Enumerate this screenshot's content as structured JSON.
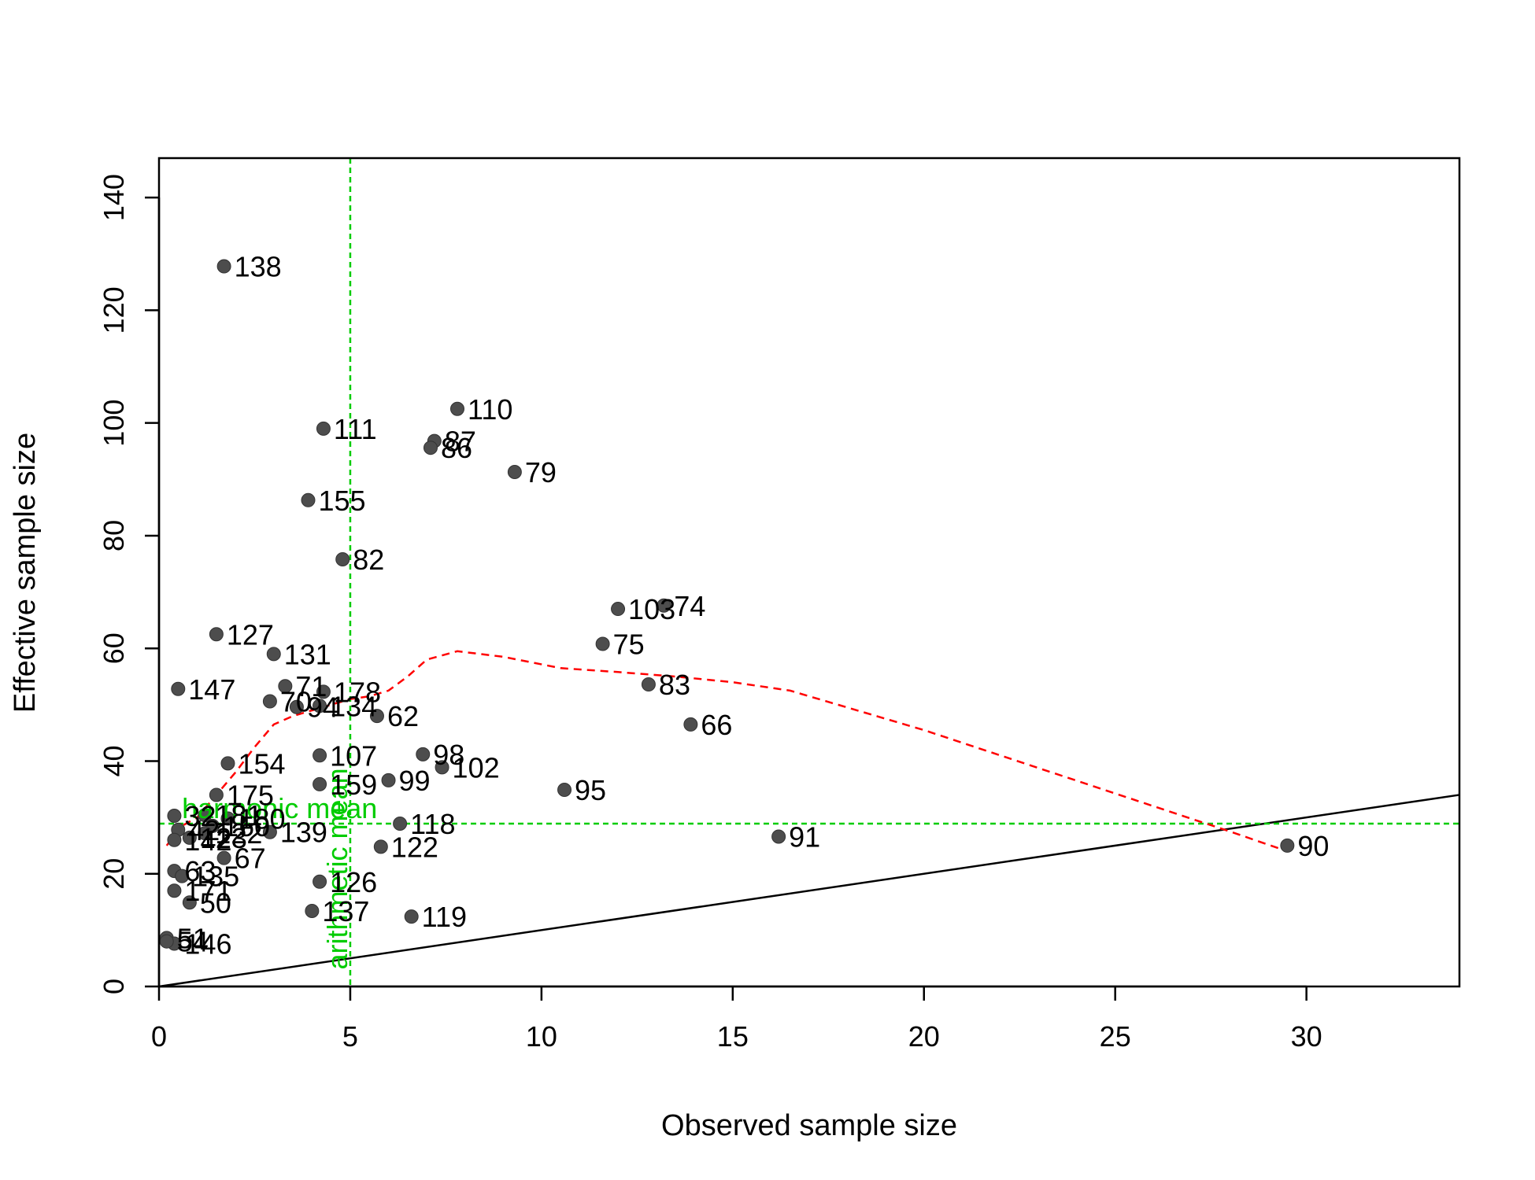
{
  "chart_data": {
    "type": "scatter",
    "title": "",
    "xlabel": "Observed sample size",
    "ylabel": "Effective sample size",
    "xlim": [
      0,
      34
    ],
    "ylim": [
      0,
      147
    ],
    "x_ticks": [
      0,
      5,
      10,
      15,
      20,
      25,
      30
    ],
    "y_ticks": [
      0,
      20,
      40,
      60,
      80,
      100,
      120,
      140
    ],
    "grid": false,
    "legend": "none",
    "colors": {
      "points": "#4d4d4d",
      "smooth": "#ff0000",
      "reference": "#00cc00",
      "identity": "#000000"
    },
    "points": [
      {
        "label": "138",
        "x": 1.7,
        "y": 127.8
      },
      {
        "label": "110",
        "x": 7.8,
        "y": 102.5
      },
      {
        "label": "111",
        "x": 4.3,
        "y": 99.0
      },
      {
        "label": "87",
        "x": 7.2,
        "y": 96.8
      },
      {
        "label": "86",
        "x": 7.1,
        "y": 95.6
      },
      {
        "label": "79",
        "x": 9.3,
        "y": 91.3
      },
      {
        "label": "155",
        "x": 3.9,
        "y": 86.3
      },
      {
        "label": "82",
        "x": 4.8,
        "y": 75.8
      },
      {
        "label": "103",
        "x": 12.0,
        "y": 67.0
      },
      {
        "label": "74",
        "x": 13.2,
        "y": 67.6
      },
      {
        "label": "75",
        "x": 11.6,
        "y": 60.8
      },
      {
        "label": "127",
        "x": 1.5,
        "y": 62.5
      },
      {
        "label": "131",
        "x": 3.0,
        "y": 59.0
      },
      {
        "label": "83",
        "x": 12.8,
        "y": 53.6
      },
      {
        "label": "147",
        "x": 0.5,
        "y": 52.8
      },
      {
        "label": "71",
        "x": 3.3,
        "y": 53.3
      },
      {
        "label": "178",
        "x": 4.3,
        "y": 52.3
      },
      {
        "label": "70",
        "x": 2.9,
        "y": 50.6
      },
      {
        "label": "94",
        "x": 3.6,
        "y": 49.6
      },
      {
        "label": "134",
        "x": 4.2,
        "y": 49.8
      },
      {
        "label": "62",
        "x": 5.7,
        "y": 48.0
      },
      {
        "label": "66",
        "x": 13.9,
        "y": 46.5
      },
      {
        "label": "107",
        "x": 4.2,
        "y": 41.0
      },
      {
        "label": "98",
        "x": 6.9,
        "y": 41.2
      },
      {
        "label": "102",
        "x": 7.4,
        "y": 38.9
      },
      {
        "label": "154",
        "x": 1.8,
        "y": 39.6
      },
      {
        "label": "159",
        "x": 4.2,
        "y": 35.9
      },
      {
        "label": "99",
        "x": 6.0,
        "y": 36.6
      },
      {
        "label": "95",
        "x": 10.6,
        "y": 34.9
      },
      {
        "label": "175",
        "x": 1.5,
        "y": 34.0
      },
      {
        "label": "181",
        "x": 1.2,
        "y": 30.4
      },
      {
        "label": "180",
        "x": 1.8,
        "y": 29.8
      },
      {
        "label": "32",
        "x": 0.4,
        "y": 30.3
      },
      {
        "label": "118",
        "x": 6.3,
        "y": 28.9
      },
      {
        "label": "139",
        "x": 2.9,
        "y": 27.4
      },
      {
        "label": "150",
        "x": 1.4,
        "y": 28.5
      },
      {
        "label": "42",
        "x": 0.5,
        "y": 27.8
      },
      {
        "label": "122",
        "x": 1.2,
        "y": 27.2
      },
      {
        "label": "123",
        "x": 0.8,
        "y": 26.4
      },
      {
        "label": "142",
        "x": 0.4,
        "y": 26.0
      },
      {
        "label": "91",
        "x": 16.2,
        "y": 26.6
      },
      {
        "label": "90",
        "x": 29.5,
        "y": 25.0
      },
      {
        "label": "122",
        "x": 5.8,
        "y": 24.8
      },
      {
        "label": "67",
        "x": 1.7,
        "y": 22.8
      },
      {
        "label": "63",
        "x": 0.4,
        "y": 20.5
      },
      {
        "label": "135",
        "x": 0.6,
        "y": 19.6
      },
      {
        "label": "126",
        "x": 4.2,
        "y": 18.6
      },
      {
        "label": "171",
        "x": 0.4,
        "y": 17.0
      },
      {
        "label": "50",
        "x": 0.8,
        "y": 14.9
      },
      {
        "label": "137",
        "x": 4.0,
        "y": 13.4
      },
      {
        "label": "119",
        "x": 6.6,
        "y": 12.4
      },
      {
        "label": "51",
        "x": 0.2,
        "y": 8.6
      },
      {
        "label": "146",
        "x": 0.4,
        "y": 7.6
      },
      {
        "label": "54",
        "x": 0.2,
        "y": 8.0
      }
    ],
    "smooth_line": {
      "style": "dashed",
      "x": [
        0.2,
        0.6,
        1.0,
        1.5,
        2.0,
        2.5,
        3.0,
        3.5,
        4.0,
        4.5,
        5.0,
        5.5,
        6.0,
        6.5,
        7.0,
        7.8,
        9.0,
        10.5,
        12.0,
        13.5,
        15.0,
        16.5,
        18.0,
        20.0,
        22.0,
        24.0,
        26.0,
        28.0,
        29.5
      ],
      "y": [
        25.0,
        28.5,
        30.0,
        34.0,
        38.0,
        42.5,
        46.5,
        48.0,
        49.0,
        50.0,
        51.0,
        51.5,
        52.5,
        55.0,
        58.0,
        59.5,
        58.5,
        56.5,
        55.8,
        55.0,
        54.0,
        52.5,
        49.5,
        45.5,
        41.0,
        36.5,
        32.0,
        27.5,
        24.0
      ]
    },
    "identity_line": {
      "from": [
        0,
        0
      ],
      "to": [
        34,
        34
      ]
    },
    "reference_lines": [
      {
        "axis": "x",
        "value": 5.0,
        "label": "arithmetic mean"
      },
      {
        "axis": "y",
        "value": 28.9,
        "label": "harmonic mean"
      }
    ]
  }
}
